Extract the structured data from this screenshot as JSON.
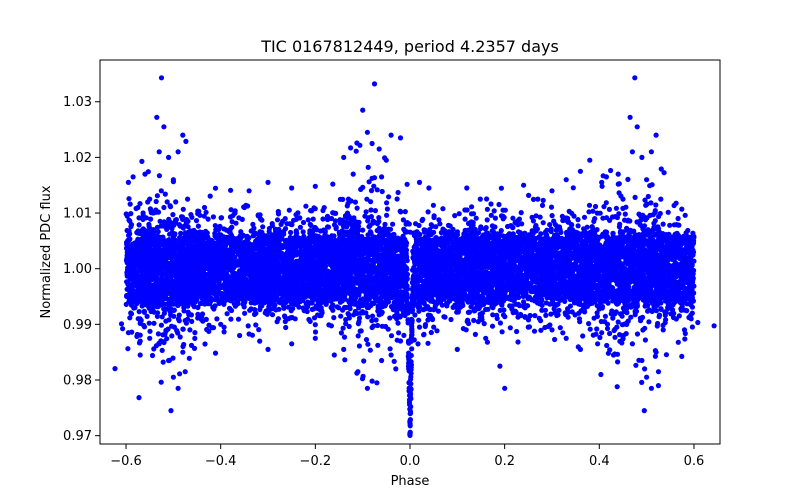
{
  "chart_data": {
    "type": "scatter",
    "title": "TIC 0167812449, period 4.2357 days",
    "xlabel": "Phase",
    "ylabel": "Normalized PDC flux",
    "xlim": [
      -0.655,
      0.655
    ],
    "ylim": [
      0.9685,
      1.0375
    ],
    "x_ticks": [
      -0.6,
      -0.4,
      -0.2,
      0.0,
      0.2,
      0.4,
      0.6
    ],
    "x_tick_labels": [
      "−0.6",
      "−0.4",
      "−0.2",
      "0.0",
      "0.2",
      "0.4",
      "0.6"
    ],
    "y_ticks": [
      0.97,
      0.98,
      0.99,
      1.0,
      1.01,
      1.02,
      1.03
    ],
    "y_tick_labels": [
      "0.97",
      "0.98",
      "0.99",
      "1.00",
      "1.01",
      "1.02",
      "1.03"
    ],
    "grid": false,
    "marker_color": "#0000ff",
    "x_range": [
      -0.6,
      0.6
    ],
    "baseline_flux": 1.0,
    "baseline_band": [
      0.9945,
      1.0065
    ],
    "transit": {
      "phase": 0.0,
      "min_flux": 0.971
    },
    "outliers": [
      {
        "x": -0.525,
        "y": 1.0343
      },
      {
        "x": -0.52,
        "y": 1.0255
      },
      {
        "x": -0.535,
        "y": 1.0272
      },
      {
        "x": -0.53,
        "y": 1.021
      },
      {
        "x": -0.51,
        "y": 1.02
      },
      {
        "x": -0.48,
        "y": 1.024
      },
      {
        "x": -0.49,
        "y": 1.021
      },
      {
        "x": -0.585,
        "y": 1.0165
      },
      {
        "x": -0.56,
        "y": 1.017
      },
      {
        "x": -0.5,
        "y": 1.016
      },
      {
        "x": -0.595,
        "y": 1.0155
      },
      {
        "x": -0.55,
        "y": 1.0125
      },
      {
        "x": -0.47,
        "y": 1.0125
      },
      {
        "x": -0.575,
        "y": 1.011
      },
      {
        "x": -0.52,
        "y": 1.011
      },
      {
        "x": -0.505,
        "y": 0.9745
      },
      {
        "x": -0.5,
        "y": 0.9805
      },
      {
        "x": -0.49,
        "y": 0.9785
      },
      {
        "x": -0.475,
        "y": 0.9815
      },
      {
        "x": -0.48,
        "y": 0.985
      },
      {
        "x": -0.51,
        "y": 0.9835
      },
      {
        "x": -0.53,
        "y": 0.9865
      },
      {
        "x": -0.57,
        "y": 0.9845
      },
      {
        "x": -0.595,
        "y": 0.9885
      },
      {
        "x": -0.55,
        "y": 0.9875
      },
      {
        "x": -0.465,
        "y": 0.989
      },
      {
        "x": -0.075,
        "y": 1.0332
      },
      {
        "x": -0.1,
        "y": 1.0285
      },
      {
        "x": -0.09,
        "y": 1.0245
      },
      {
        "x": -0.08,
        "y": 1.0225
      },
      {
        "x": -0.065,
        "y": 1.0215
      },
      {
        "x": -0.04,
        "y": 1.024
      },
      {
        "x": -0.02,
        "y": 1.0235
      },
      {
        "x": -0.05,
        "y": 1.0195
      },
      {
        "x": -0.14,
        "y": 1.02
      },
      {
        "x": -0.12,
        "y": 1.017
      },
      {
        "x": -0.13,
        "y": 1.0125
      },
      {
        "x": -0.06,
        "y": 1.0165
      },
      {
        "x": -0.3,
        "y": 1.0155
      },
      {
        "x": -0.34,
        "y": 1.014
      },
      {
        "x": -0.25,
        "y": 1.0145
      },
      {
        "x": -0.2,
        "y": 1.0148
      },
      {
        "x": -0.35,
        "y": 1.011
      },
      {
        "x": -0.37,
        "y": 1.01
      },
      {
        "x": -0.09,
        "y": 0.9785
      },
      {
        "x": -0.07,
        "y": 0.9795
      },
      {
        "x": -0.11,
        "y": 0.9815
      },
      {
        "x": -0.16,
        "y": 0.9845
      },
      {
        "x": -0.14,
        "y": 0.9855
      },
      {
        "x": -0.06,
        "y": 0.9835
      },
      {
        "x": -0.04,
        "y": 0.9845
      },
      {
        "x": -0.03,
        "y": 0.982
      },
      {
        "x": -0.25,
        "y": 0.9865
      },
      {
        "x": -0.3,
        "y": 0.9855
      },
      {
        "x": -0.2,
        "y": 0.9875
      },
      {
        "x": -0.36,
        "y": 0.988
      },
      {
        "x": -0.4,
        "y": 0.99
      },
      {
        "x": -0.02,
        "y": 0.987
      },
      {
        "x": 0.475,
        "y": 1.0343
      },
      {
        "x": 0.48,
        "y": 1.0255
      },
      {
        "x": 0.465,
        "y": 1.0272
      },
      {
        "x": 0.47,
        "y": 1.021
      },
      {
        "x": 0.49,
        "y": 1.02
      },
      {
        "x": 0.52,
        "y": 1.024
      },
      {
        "x": 0.51,
        "y": 1.021
      },
      {
        "x": 0.415,
        "y": 1.0165
      },
      {
        "x": 0.44,
        "y": 1.017
      },
      {
        "x": 0.5,
        "y": 1.016
      },
      {
        "x": 0.405,
        "y": 1.0155
      },
      {
        "x": 0.45,
        "y": 1.0125
      },
      {
        "x": 0.53,
        "y": 1.0125
      },
      {
        "x": 0.38,
        "y": 1.0195
      },
      {
        "x": 0.36,
        "y": 1.0175
      },
      {
        "x": 0.33,
        "y": 1.016
      },
      {
        "x": 0.3,
        "y": 1.014
      },
      {
        "x": 0.27,
        "y": 1.0125
      },
      {
        "x": 0.24,
        "y": 1.015
      },
      {
        "x": 0.12,
        "y": 1.0145
      },
      {
        "x": 0.04,
        "y": 1.0145
      },
      {
        "x": 0.02,
        "y": 1.0155
      },
      {
        "x": 0.495,
        "y": 0.9745
      },
      {
        "x": 0.5,
        "y": 0.9805
      },
      {
        "x": 0.51,
        "y": 0.9785
      },
      {
        "x": 0.525,
        "y": 0.9815
      },
      {
        "x": 0.52,
        "y": 0.985
      },
      {
        "x": 0.49,
        "y": 0.9835
      },
      {
        "x": 0.47,
        "y": 0.9865
      },
      {
        "x": 0.43,
        "y": 0.9845
      },
      {
        "x": 0.405,
        "y": 0.9885
      },
      {
        "x": 0.45,
        "y": 0.9875
      },
      {
        "x": 0.535,
        "y": 0.989
      },
      {
        "x": 0.36,
        "y": 0.9855
      },
      {
        "x": 0.33,
        "y": 0.9875
      },
      {
        "x": 0.2,
        "y": 0.9785
      },
      {
        "x": 0.19,
        "y": 0.9825
      },
      {
        "x": 0.16,
        "y": 0.9875
      },
      {
        "x": 0.1,
        "y": 0.9855
      },
      {
        "x": 0.02,
        "y": 0.9895
      },
      {
        "x": 0.05,
        "y": 0.9895
      },
      {
        "x": 0.25,
        "y": 0.9895
      },
      {
        "x": 0.3,
        "y": 0.989
      },
      {
        "x": 0.58,
        "y": 0.989
      }
    ]
  }
}
